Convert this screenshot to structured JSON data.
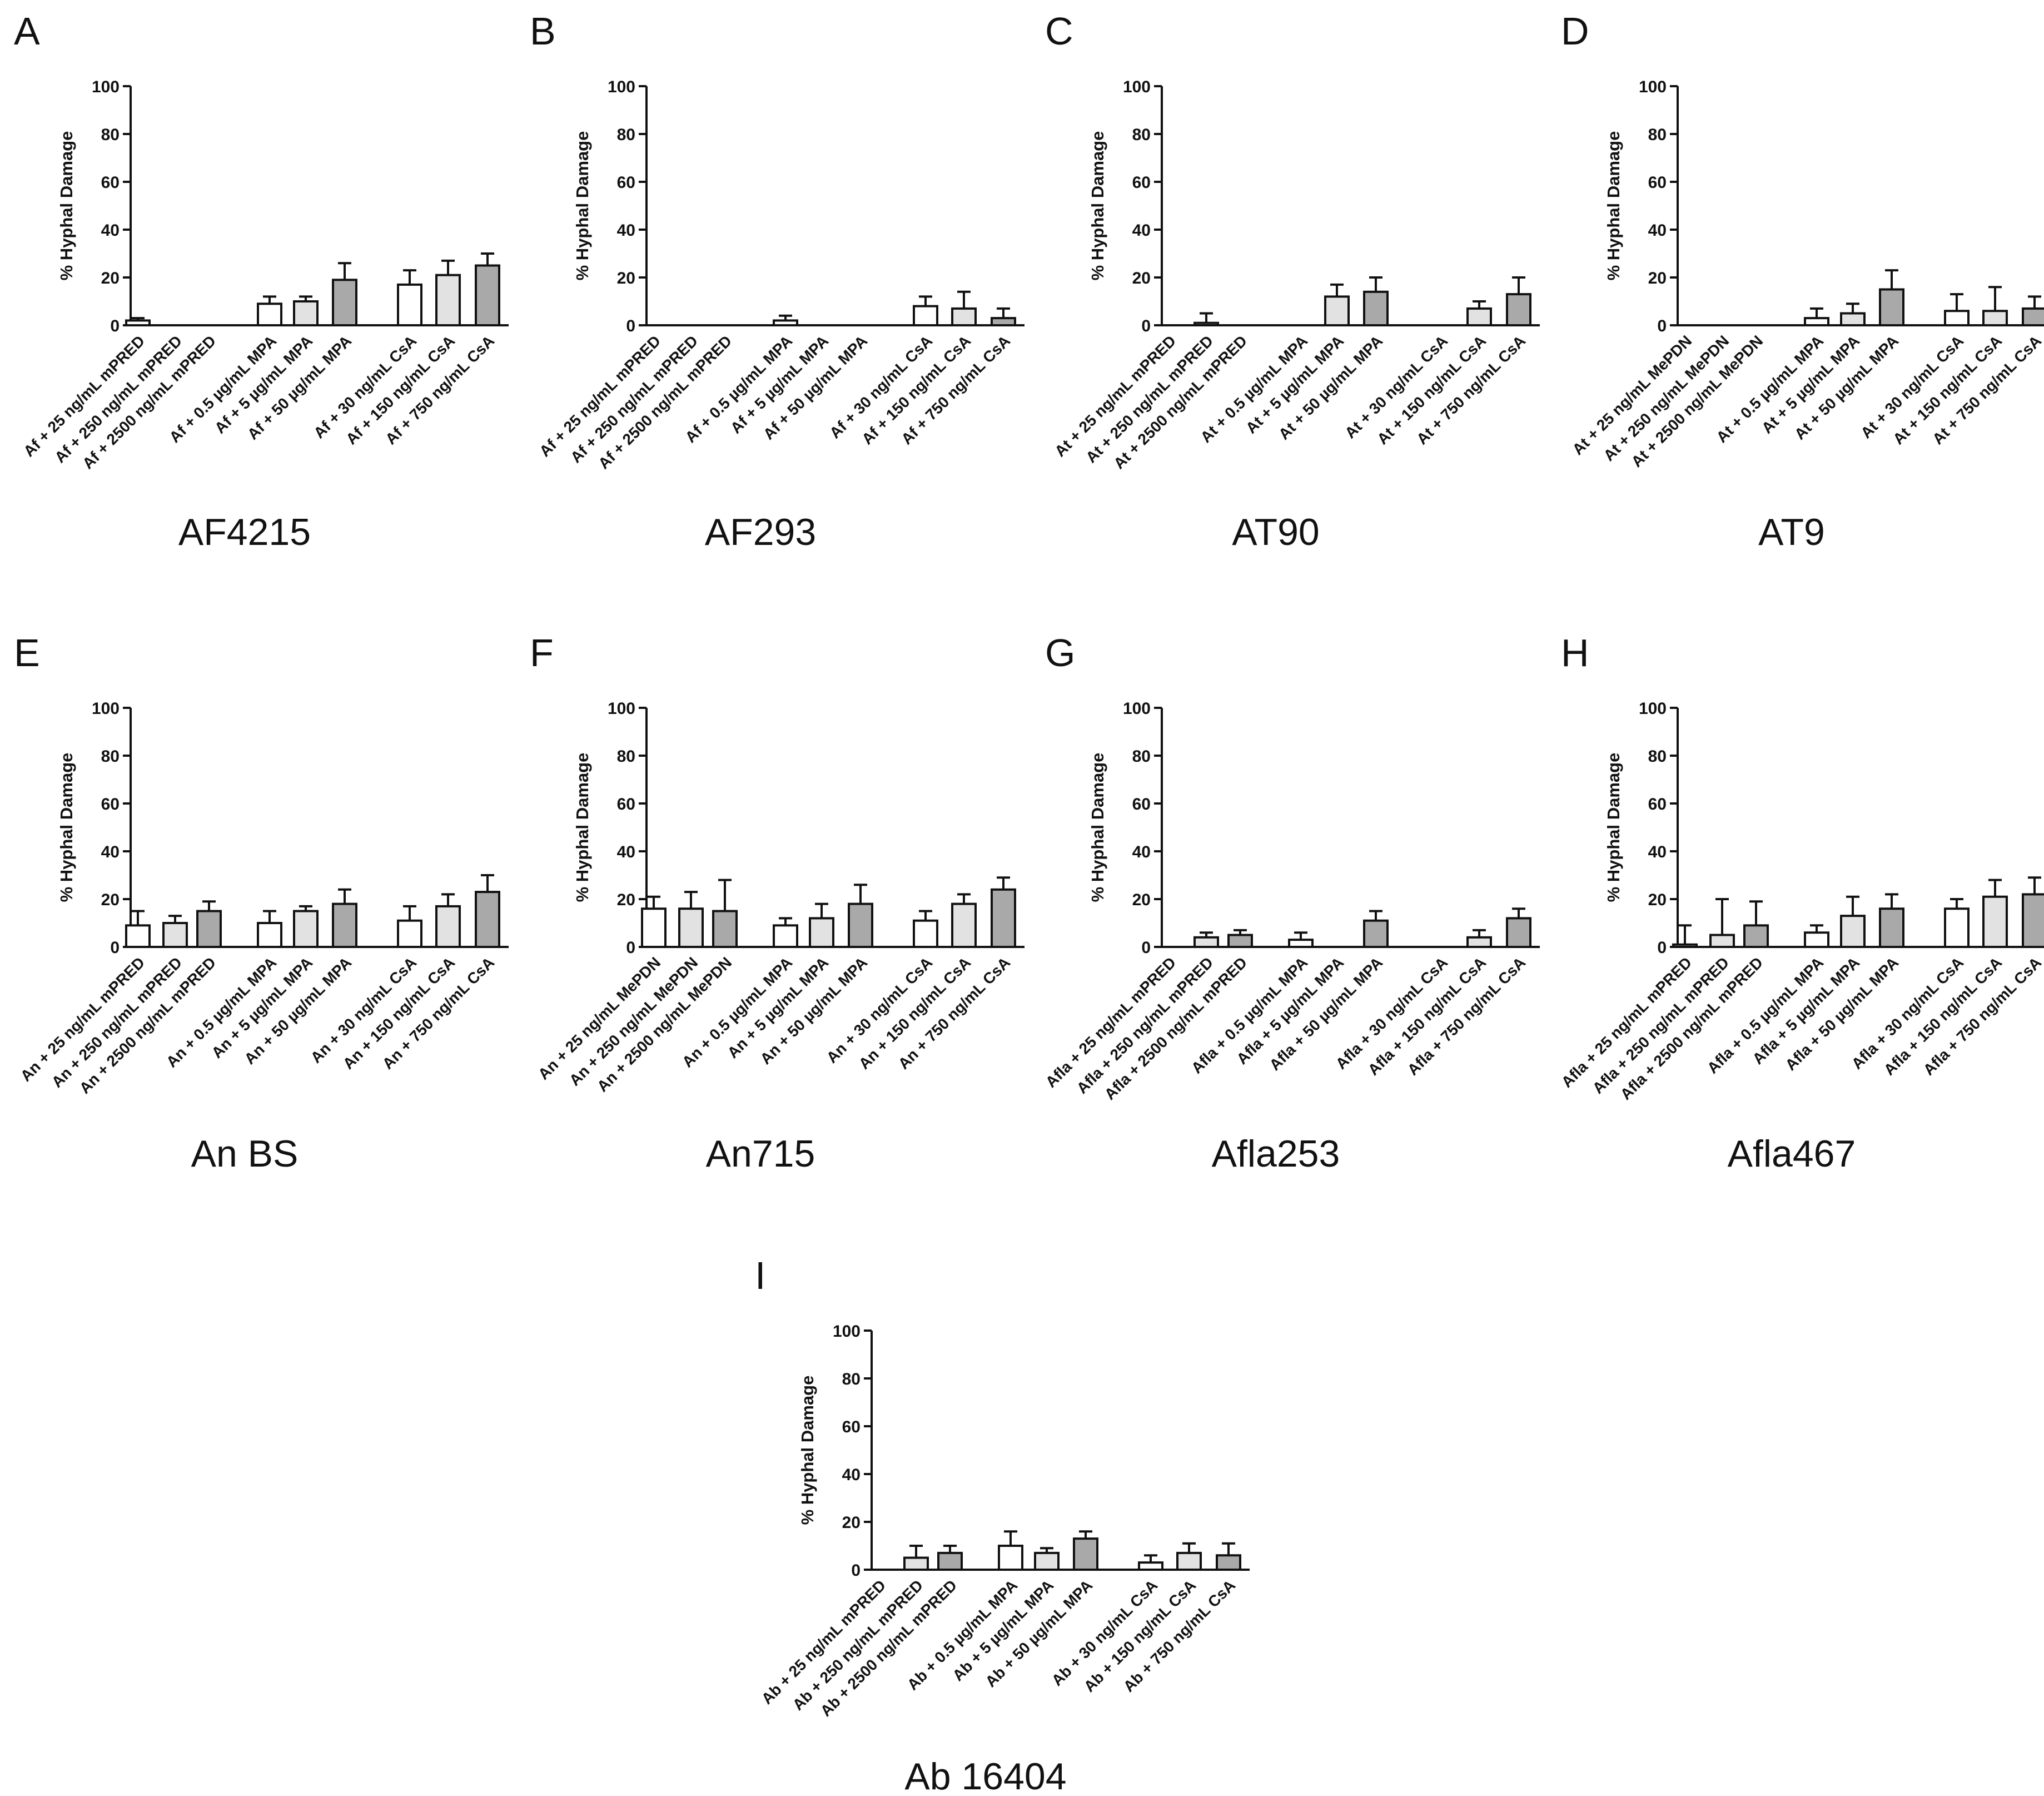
{
  "y_axis_title": "% Hyphal Damage",
  "y_ticks": [
    "0",
    "20",
    "40",
    "60",
    "80",
    "100"
  ],
  "fill_colors": [
    "#ffffff",
    "#e2e2e2",
    "#a9a9a9"
  ],
  "chart_data": [
    {
      "panel": "A",
      "title": "AF4215",
      "type": "bar",
      "ylim": [
        0,
        100
      ],
      "ylabel": "% Hyphal Damage",
      "categories": [
        "Af + 25 ng/mL mPRED",
        "Af + 250 ng/mL mPRED",
        "Af + 2500 ng/mL mPRED",
        "Af + 0.5 µg/mL MPA",
        "Af + 5 µg/mL MPA",
        "Af + 50 µg/mL MPA",
        "Af + 30 ng/mL CsA",
        "Af + 150 ng/mL CsA",
        "Af + 750 ng/mL CsA"
      ],
      "values": [
        2,
        0,
        0,
        9,
        10,
        19,
        17,
        21,
        25
      ],
      "errors": [
        1,
        0,
        0,
        3,
        2,
        7,
        6,
        6,
        5
      ]
    },
    {
      "panel": "B",
      "title": "AF293",
      "type": "bar",
      "ylim": [
        0,
        100
      ],
      "ylabel": "% Hyphal Damage",
      "categories": [
        "Af + 25 ng/mL mPRED",
        "Af + 250 ng/mL mPRED",
        "Af + 2500 ng/mL mPRED",
        "Af + 0.5 µg/mL MPA",
        "Af + 5 µg/mL MPA",
        "Af + 50 µg/mL MPA",
        "Af + 30 ng/mL CsA",
        "Af + 150 ng/mL CsA",
        "Af + 750 ng/mL CsA"
      ],
      "values": [
        0,
        0,
        0,
        2,
        0,
        0,
        8,
        7,
        3
      ],
      "errors": [
        0,
        0,
        0,
        2,
        0,
        0,
        4,
        7,
        4
      ]
    },
    {
      "panel": "C",
      "title": "AT90",
      "type": "bar",
      "ylim": [
        0,
        100
      ],
      "ylabel": "% Hyphal Damage",
      "categories": [
        "At + 25 ng/mL mPRED",
        "At + 250 ng/mL mPRED",
        "At + 2500 ng/mL mPRED",
        "At + 0.5 µg/mL MPA",
        "At + 5 µg/mL MPA",
        "At + 50 µg/mL MPA",
        "At + 30 ng/mL CsA",
        "At + 150 ng/mL CsA",
        "At + 750 ng/mL CsA"
      ],
      "values": [
        0,
        1,
        0,
        0,
        12,
        14,
        0,
        7,
        13
      ],
      "errors": [
        0,
        4,
        0,
        0,
        5,
        6,
        0,
        3,
        7
      ]
    },
    {
      "panel": "D",
      "title": "AT9",
      "type": "bar",
      "ylim": [
        0,
        100
      ],
      "ylabel": "% Hyphal Damage",
      "categories": [
        "At + 25 ng/mL MePDN",
        "At + 250 ng/mL MePDN",
        "At + 2500 ng/mL MePDN",
        "At + 0.5 µg/mL MPA",
        "At + 5 µg/mL MPA",
        "At + 50 µg/mL MPA",
        "At + 30 ng/mL CsA",
        "At + 150 ng/mL CsA",
        "At + 750 ng/mL CsA"
      ],
      "values": [
        0,
        0,
        0,
        3,
        5,
        15,
        6,
        6,
        7
      ],
      "errors": [
        0,
        0,
        0,
        4,
        4,
        8,
        7,
        10,
        5
      ]
    },
    {
      "panel": "E",
      "title": "An BS",
      "type": "bar",
      "ylim": [
        0,
        100
      ],
      "ylabel": "% Hyphal Damage",
      "categories": [
        "An + 25 ng/mL mPRED",
        "An + 250 ng/mL mPRED",
        "An + 2500 ng/mL mPRED",
        "An + 0.5 µg/mL MPA",
        "An + 5 µg/mL MPA",
        "An + 50 µg/mL MPA",
        "An + 30 ng/mL CsA",
        "An + 150 ng/mL CsA",
        "An + 750 ng/mL CsA"
      ],
      "values": [
        9,
        10,
        15,
        10,
        15,
        18,
        11,
        17,
        23
      ],
      "errors": [
        6,
        3,
        4,
        5,
        2,
        6,
        6,
        5,
        7
      ]
    },
    {
      "panel": "F",
      "title": "An715",
      "type": "bar",
      "ylim": [
        0,
        100
      ],
      "ylabel": "% Hyphal Damage",
      "categories": [
        "An + 25 ng/mL MePDN",
        "An + 250 ng/mL MePDN",
        "An + 2500 ng/mL MePDN",
        "An + 0.5 µg/mL MPA",
        "An + 5 µg/mL MPA",
        "An + 50 µg/mL MPA",
        "An + 30 ng/mL CsA",
        "An + 150 ng/mL CsA",
        "An + 750 ng/mL CsA"
      ],
      "values": [
        16,
        16,
        15,
        9,
        12,
        18,
        11,
        18,
        24
      ],
      "errors": [
        5,
        7,
        13,
        3,
        6,
        8,
        4,
        4,
        5
      ]
    },
    {
      "panel": "G",
      "title": "Afla253",
      "type": "bar",
      "ylim": [
        0,
        100
      ],
      "ylabel": "% Hyphal Damage",
      "categories": [
        "Afla + 25 ng/mL mPRED",
        "Afla + 250 ng/mL mPRED",
        "Afla + 2500 ng/mL mPRED",
        "Afla + 0.5 µg/mL MPA",
        "Afla + 5 µg/mL MPA",
        "Afla + 50 µg/mL MPA",
        "Afla + 30 ng/mL CsA",
        "Afla + 150 ng/mL CsA",
        "Afla + 750 ng/mL CsA"
      ],
      "values": [
        0,
        4,
        5,
        3,
        0,
        11,
        0,
        4,
        12
      ],
      "errors": [
        0,
        2,
        2,
        3,
        0,
        4,
        0,
        3,
        4
      ]
    },
    {
      "panel": "H",
      "title": "Afla467",
      "type": "bar",
      "ylim": [
        0,
        100
      ],
      "ylabel": "% Hyphal Damage",
      "categories": [
        "Afla + 25 ng/mL mPRED",
        "Afla + 250 ng/mL mPRED",
        "Afla + 2500 ng/mL mPRED",
        "Afla + 0.5 µg/mL MPA",
        "Afla + 5 µg/mL MPA",
        "Afla + 50 µg/mL MPA",
        "Afla + 30 ng/mL CsA",
        "Afla + 150 ng/mL CsA",
        "Afla + 750 ng/mL CsA"
      ],
      "values": [
        1,
        5,
        9,
        6,
        13,
        16,
        16,
        21,
        22
      ],
      "errors": [
        8,
        15,
        10,
        3,
        8,
        6,
        4,
        7,
        7
      ]
    },
    {
      "panel": "I",
      "title": "Ab 16404",
      "type": "bar",
      "ylim": [
        0,
        100
      ],
      "ylabel": "% Hyphal Damage",
      "categories": [
        "Ab + 25 ng/mL mPRED",
        "Ab + 250 ng/mL mPRED",
        "Ab + 2500 ng/mL mPRED",
        "Ab + 0.5 µg/mL MPA",
        "Ab + 5 µg/mL MPA",
        "Ab + 50 µg/mL MPA",
        "Ab + 30 ng/mL CsA",
        "Ab + 150 ng/mL CsA",
        "Ab + 750 ng/mL CsA"
      ],
      "values": [
        0,
        5,
        7,
        10,
        7,
        13,
        3,
        7,
        6
      ],
      "errors": [
        0,
        5,
        3,
        6,
        2,
        3,
        3,
        4,
        5
      ]
    }
  ]
}
